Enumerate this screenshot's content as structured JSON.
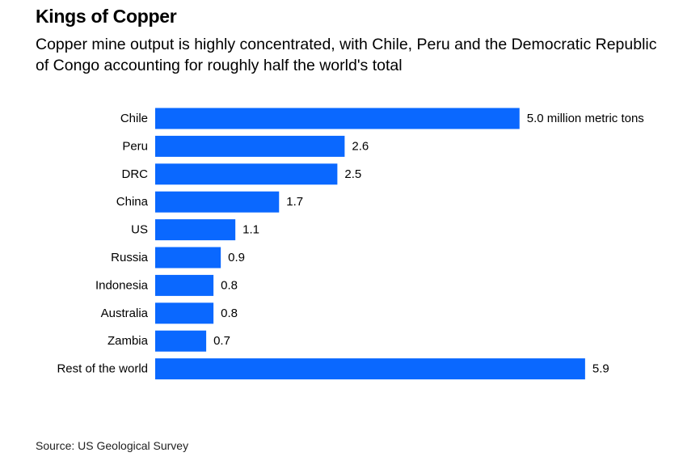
{
  "title": "Kings of Copper",
  "subtitle": "Copper mine output is highly concentrated, with Chile, Peru and the Democratic Republic of Congo accounting for roughly half the world's total",
  "source": "Source: US Geological Survey",
  "colors": {
    "bar": "#0a68ff",
    "text": "#000000"
  },
  "chart_data": {
    "type": "bar",
    "orientation": "horizontal",
    "title": "Kings of Copper",
    "subtitle": "Copper mine output is highly concentrated, with Chile, Peru and the Democratic Republic of Congo accounting for roughly half the world's total",
    "xlabel": "",
    "ylabel": "",
    "unit": "million metric tons",
    "xlim": [
      0,
      6
    ],
    "grid": false,
    "legend": "none",
    "categories": [
      "Chile",
      "Peru",
      "DRC",
      "China",
      "US",
      "Russia",
      "Indonesia",
      "Australia",
      "Zambia",
      "Rest of the world"
    ],
    "values": [
      5.0,
      2.6,
      2.5,
      1.7,
      1.1,
      0.9,
      0.8,
      0.8,
      0.7,
      5.9
    ],
    "value_labels": [
      "5.0 million metric tons",
      "2.6",
      "2.5",
      "1.7",
      "1.1",
      "0.9",
      "0.8",
      "0.8",
      "0.7",
      "5.9"
    ]
  }
}
